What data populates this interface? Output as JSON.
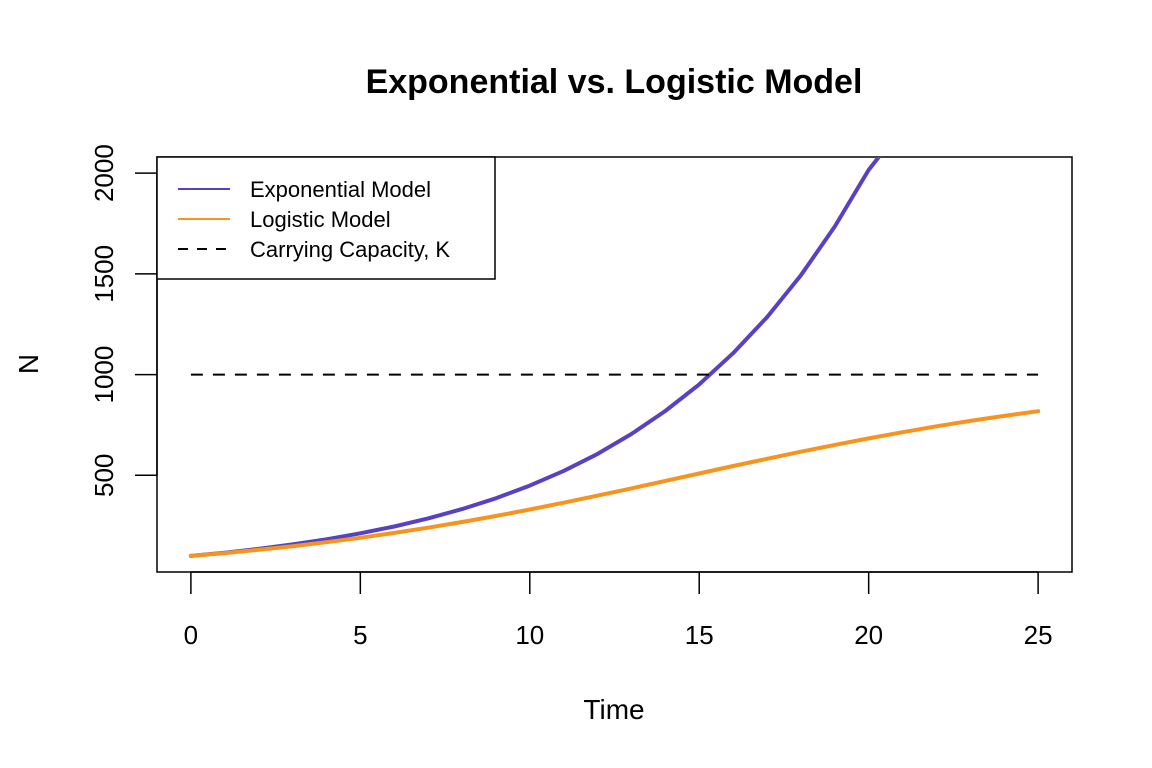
{
  "chart_data": {
    "type": "line",
    "title": "Exponential vs. Logistic Model",
    "xlabel": "Time",
    "ylabel": "N",
    "xlim": [
      -1,
      26
    ],
    "ylim": [
      20,
      2080
    ],
    "x_ticks": [
      0,
      5,
      10,
      15,
      20,
      25
    ],
    "y_ticks": [
      500,
      1000,
      1500,
      2000
    ],
    "grid": false,
    "legend_position": "top-left",
    "series": [
      {
        "name": "Exponential Model",
        "color": "#5543C4",
        "style": "solid",
        "x": [
          0,
          1,
          2,
          3,
          4,
          5,
          6,
          7,
          8,
          9,
          10,
          11,
          12,
          13,
          14,
          15,
          16,
          17,
          18,
          19,
          20,
          20.3
        ],
        "y": [
          100,
          116,
          135,
          157,
          182,
          212,
          246,
          286,
          332,
          386,
          449,
          522,
          606,
          705,
          819,
          951,
          1106,
          1285,
          1493,
          1735,
          2016,
          2080
        ]
      },
      {
        "name": "Logistic Model",
        "color": "#F7931E",
        "style": "solid",
        "x": [
          0,
          1,
          2,
          3,
          4,
          5,
          6,
          7,
          8,
          9,
          10,
          11,
          12,
          13,
          14,
          15,
          16,
          17,
          18,
          19,
          20,
          21,
          22,
          23,
          24,
          25
        ],
        "y": [
          100,
          114,
          130,
          148,
          168,
          190,
          214,
          240,
          268,
          298,
          330,
          364,
          399,
          435,
          472,
          509,
          546,
          582,
          617,
          651,
          683,
          714,
          743,
          770,
          795,
          818
        ]
      },
      {
        "name": "Carrying Capacity, K",
        "color": "#000000",
        "style": "dashed",
        "x": [
          0,
          25
        ],
        "y": [
          1000,
          1000
        ]
      }
    ]
  }
}
